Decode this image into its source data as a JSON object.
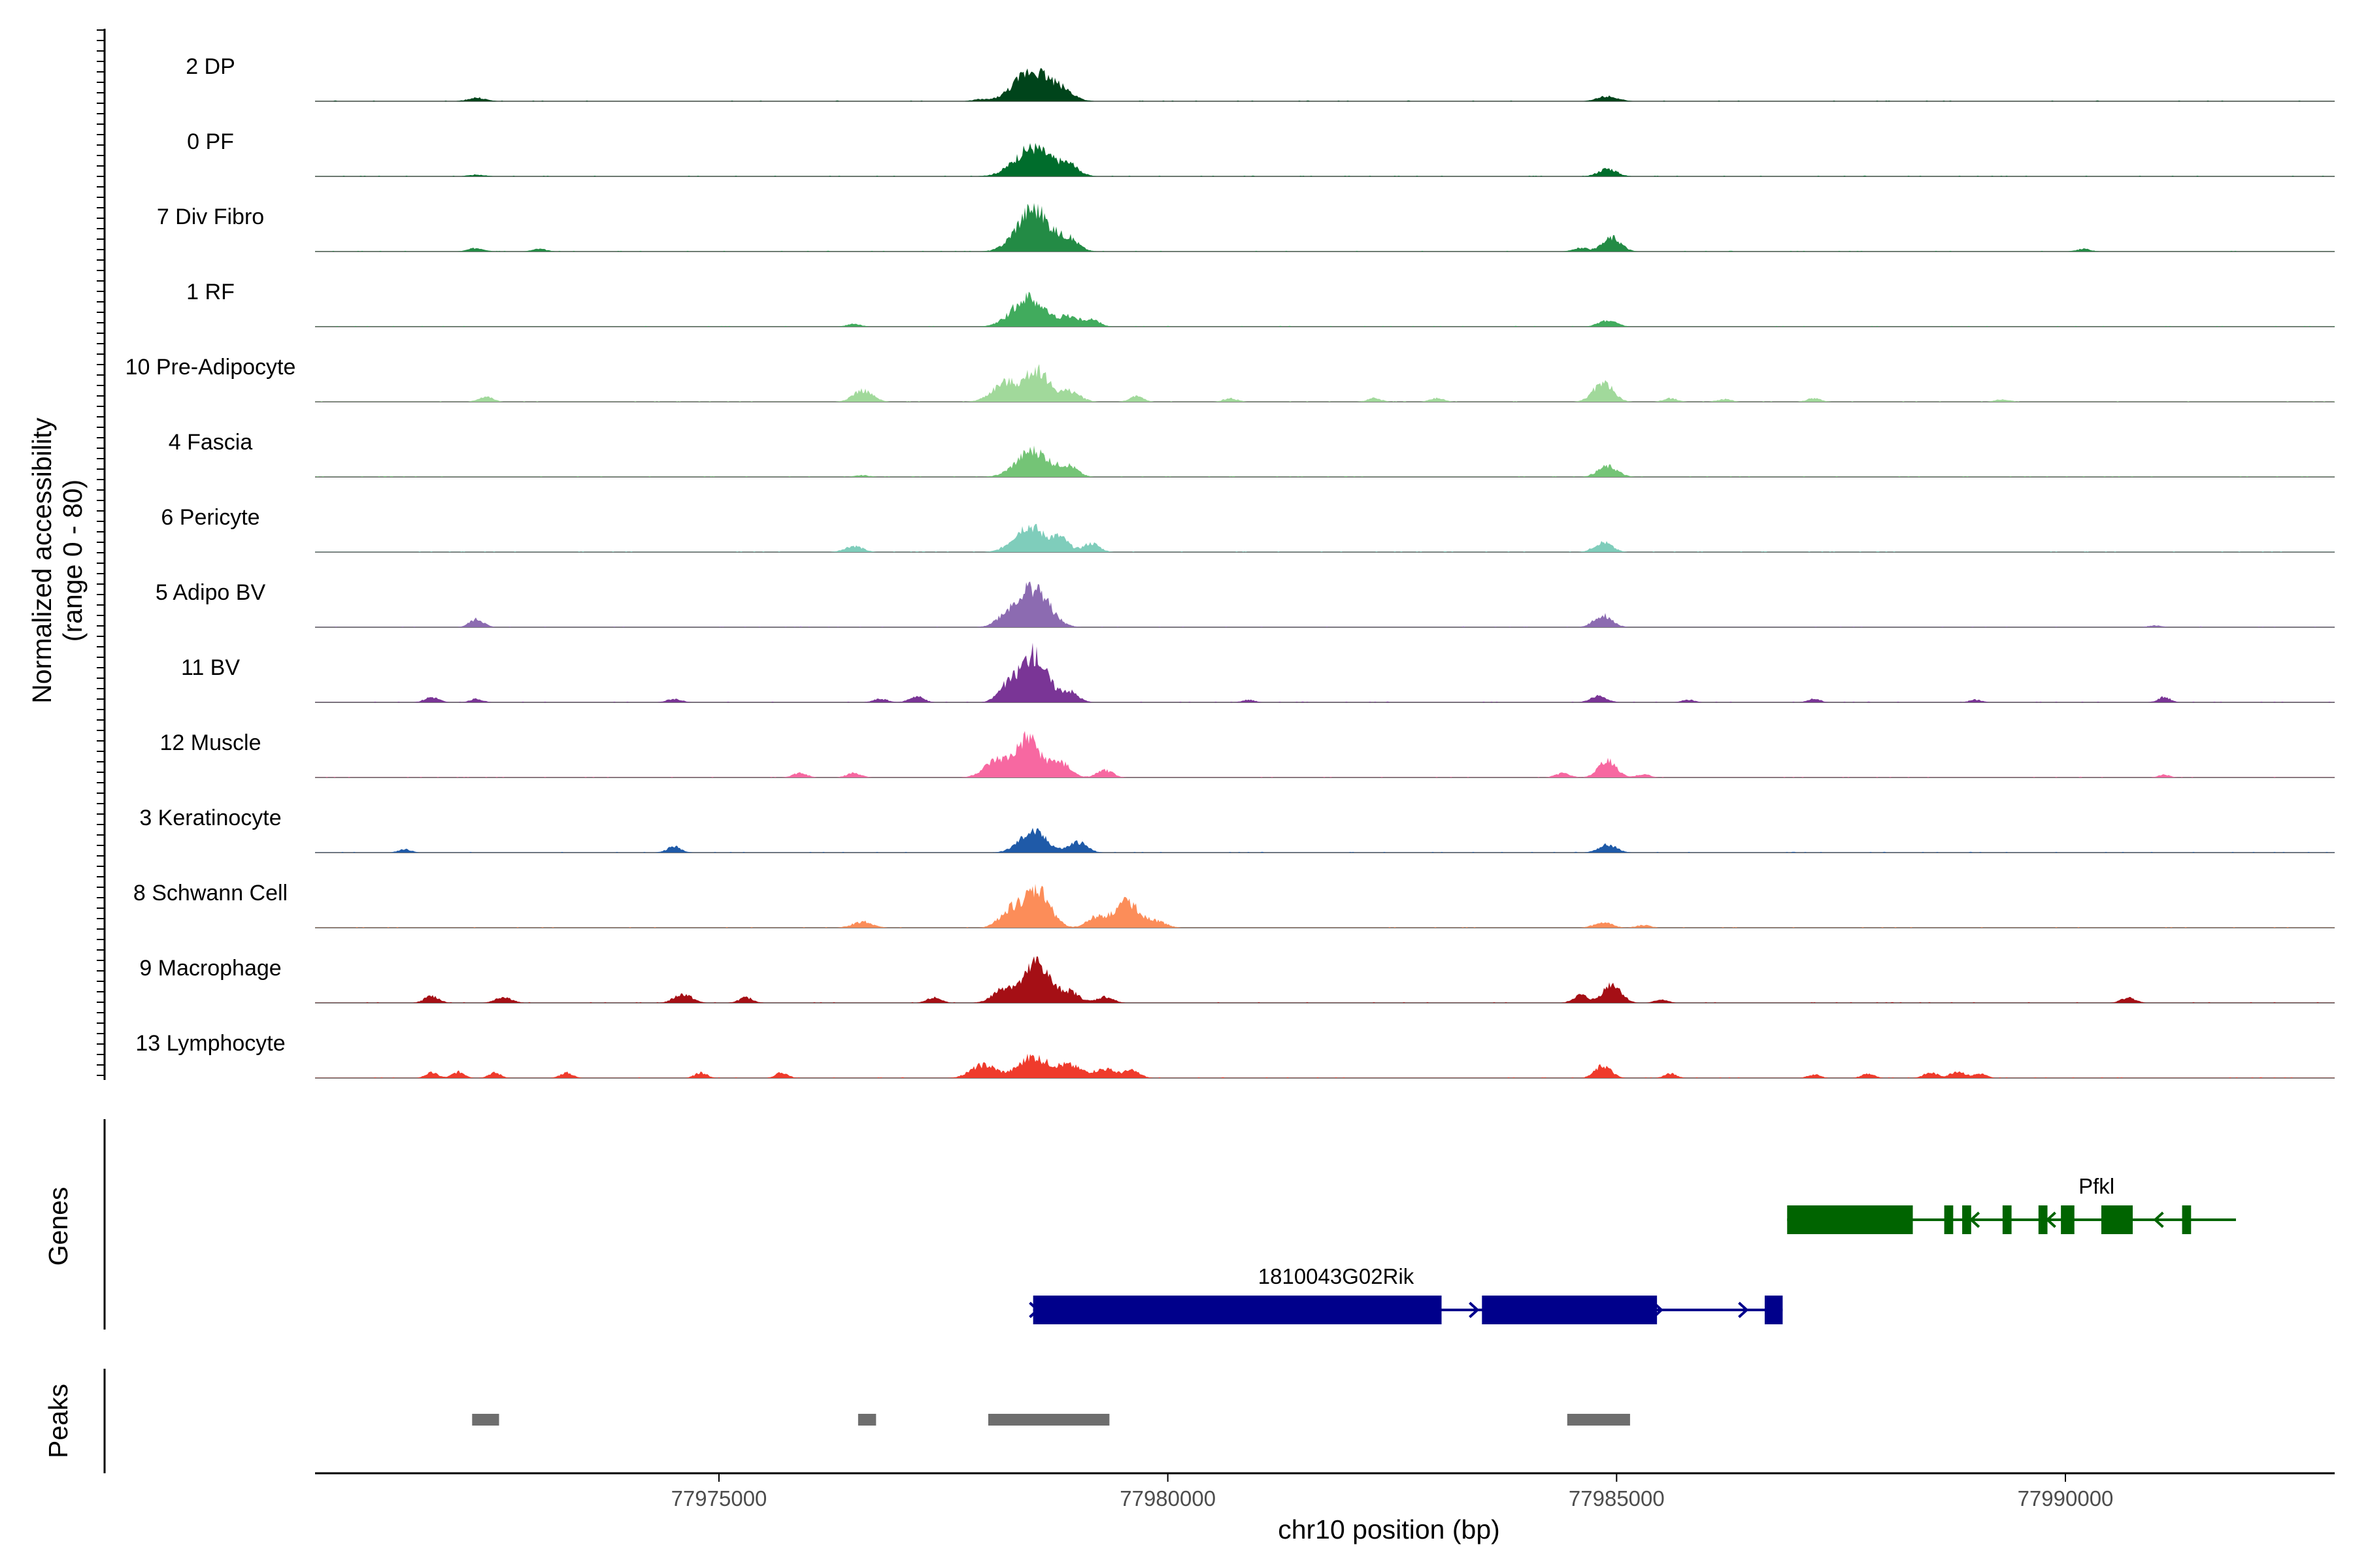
{
  "chart_data": {
    "type": "area",
    "genome_axis": {
      "label": "chr10 position (bp)",
      "range": [
        77970500,
        77993000
      ],
      "ticks": [
        77975000,
        77980000,
        77985000,
        77990000
      ],
      "tick_labels": [
        "77975000",
        "77980000",
        "77985000",
        "77990000"
      ]
    },
    "y_axis": {
      "label_line1": "Normalized accessibility",
      "label_line2": "(range 0 - 80)",
      "range": [
        0,
        80
      ]
    },
    "gridlines": false,
    "tracks": [
      {
        "name": "2 DP",
        "color": "#00441b",
        "peaks": [
          [
            77978500,
            35,
            200
          ],
          [
            77978850,
            8,
            120
          ],
          [
            77972300,
            4,
            100
          ],
          [
            77984900,
            6,
            110
          ],
          [
            77977900,
            2,
            80
          ]
        ]
      },
      {
        "name": "0 PF",
        "color": "#006d2c",
        "peaks": [
          [
            77978500,
            33,
            200
          ],
          [
            77978900,
            11,
            110
          ],
          [
            77984900,
            9,
            100
          ],
          [
            77972300,
            2,
            90
          ]
        ]
      },
      {
        "name": "7 Div Fibro",
        "color": "#238b45",
        "peaks": [
          [
            77978500,
            49,
            180
          ],
          [
            77978900,
            13,
            110
          ],
          [
            77984950,
            16,
            100
          ],
          [
            77984600,
            4,
            90
          ],
          [
            77972300,
            4,
            90
          ],
          [
            77973000,
            3,
            80
          ],
          [
            77990200,
            3,
            80
          ]
        ]
      },
      {
        "name": "1 RF",
        "color": "#41ab5d",
        "peaks": [
          [
            77978450,
            33,
            180
          ],
          [
            77978900,
            11,
            100
          ],
          [
            77979150,
            8,
            90
          ],
          [
            77984900,
            7,
            100
          ],
          [
            77976500,
            3,
            80
          ]
        ]
      },
      {
        "name": "10 Pre-Adipocyte",
        "color": "#a1d99b",
        "peaks": [
          [
            77978550,
            36,
            120
          ],
          [
            77978200,
            22,
            150
          ],
          [
            77978900,
            12,
            120
          ],
          [
            77976600,
            13,
            110
          ],
          [
            77984850,
            22,
            110
          ],
          [
            77972400,
            6,
            80
          ],
          [
            77979650,
            6,
            80
          ],
          [
            77980700,
            4,
            80
          ],
          [
            77982300,
            4,
            80
          ],
          [
            77983000,
            4,
            80
          ],
          [
            77985600,
            4,
            80
          ],
          [
            77986200,
            3,
            80
          ],
          [
            77987200,
            4,
            80
          ],
          [
            77989300,
            3,
            80
          ]
        ]
      },
      {
        "name": "4 Fascia",
        "color": "#74c476",
        "peaks": [
          [
            77978500,
            30,
            180
          ],
          [
            77978900,
            11,
            100
          ],
          [
            77984900,
            12,
            110
          ],
          [
            77976600,
            2,
            80
          ]
        ]
      },
      {
        "name": "6 Pericyte",
        "color": "#7fcdbb",
        "peaks": [
          [
            77978450,
            30,
            160
          ],
          [
            77978800,
            15,
            100
          ],
          [
            77979150,
            10,
            90
          ],
          [
            77976500,
            7,
            100
          ],
          [
            77984850,
            11,
            100
          ]
        ]
      },
      {
        "name": "5 Adipo BV",
        "color": "#8c6bb1",
        "peaks": [
          [
            77978500,
            45,
            170
          ],
          [
            77978200,
            10,
            120
          ],
          [
            77984850,
            14,
            100
          ],
          [
            77972300,
            9,
            80
          ],
          [
            77991000,
            2,
            80
          ]
        ]
      },
      {
        "name": "11 BV",
        "color": "#7a3596",
        "peaks": [
          [
            77978500,
            55,
            150
          ],
          [
            77978200,
            15,
            100
          ],
          [
            77978900,
            12,
            100
          ],
          [
            77977200,
            7,
            80
          ],
          [
            77984800,
            7,
            90
          ],
          [
            77971800,
            6,
            80
          ],
          [
            77972300,
            4,
            70
          ],
          [
            77974500,
            4,
            80
          ],
          [
            77976800,
            4,
            80
          ],
          [
            77980900,
            3,
            70
          ],
          [
            77985800,
            3,
            70
          ],
          [
            77987200,
            4,
            70
          ],
          [
            77991100,
            6,
            70
          ],
          [
            77989000,
            3,
            70
          ]
        ]
      },
      {
        "name": "12 Muscle",
        "color": "#f768a1",
        "peaks": [
          [
            77978450,
            43,
            130
          ],
          [
            77978100,
            19,
            140
          ],
          [
            77978800,
            17,
            110
          ],
          [
            77979300,
            8,
            90
          ],
          [
            77984900,
            19,
            100
          ],
          [
            77984400,
            5,
            80
          ],
          [
            77975900,
            5,
            80
          ],
          [
            77976500,
            5,
            80
          ],
          [
            77985300,
            4,
            70
          ],
          [
            77991100,
            3,
            70
          ]
        ]
      },
      {
        "name": "3 Keratinocyte",
        "color": "#1f5aa8",
        "peaks": [
          [
            77978500,
            24,
            150
          ],
          [
            77979000,
            12,
            100
          ],
          [
            77984900,
            9,
            100
          ],
          [
            77974500,
            7,
            80
          ],
          [
            77971500,
            4,
            70
          ]
        ]
      },
      {
        "name": "8 Schwann Cell",
        "color": "#fc8d59",
        "peaks": [
          [
            77978550,
            42,
            140
          ],
          [
            77978250,
            20,
            120
          ],
          [
            77979550,
            30,
            140
          ],
          [
            77979200,
            12,
            100
          ],
          [
            77979900,
            6,
            100
          ],
          [
            77976600,
            7,
            110
          ],
          [
            77984850,
            6,
            100
          ],
          [
            77985300,
            3,
            80
          ]
        ]
      },
      {
        "name": "9 Macrophage",
        "color": "#a50f15",
        "peaks": [
          [
            77978550,
            46,
            130
          ],
          [
            77978200,
            18,
            130
          ],
          [
            77978900,
            13,
            110
          ],
          [
            77979300,
            7,
            90
          ],
          [
            77984950,
            22,
            100
          ],
          [
            77984600,
            9,
            80
          ],
          [
            77971800,
            8,
            80
          ],
          [
            77972600,
            7,
            90
          ],
          [
            77974600,
            10,
            100
          ],
          [
            77975300,
            6,
            80
          ],
          [
            77977400,
            6,
            80
          ],
          [
            77985500,
            4,
            70
          ],
          [
            77990700,
            6,
            80
          ]
        ]
      },
      {
        "name": "13 Lymphocyte",
        "color": "#ef3b2c",
        "peaks": [
          [
            77978500,
            24,
            160
          ],
          [
            77977950,
            15,
            140
          ],
          [
            77978900,
            14,
            140
          ],
          [
            77979300,
            10,
            120
          ],
          [
            77979600,
            8,
            90
          ],
          [
            77971800,
            6,
            70
          ],
          [
            77972100,
            7,
            70
          ],
          [
            77972500,
            6,
            70
          ],
          [
            77973300,
            6,
            70
          ],
          [
            77974800,
            6,
            70
          ],
          [
            77975700,
            6,
            70
          ],
          [
            77984850,
            14,
            90
          ],
          [
            77985600,
            5,
            70
          ],
          [
            77987200,
            4,
            70
          ],
          [
            77987800,
            5,
            70
          ],
          [
            77988500,
            6,
            80
          ],
          [
            77988800,
            8,
            80
          ],
          [
            77989050,
            5,
            70
          ]
        ]
      }
    ],
    "genes": [
      {
        "name": "Pfkl",
        "color": "#006400",
        "strand": "-",
        "row": 0,
        "span": [
          77986900,
          77991900
        ],
        "exons": [
          [
            77986900,
            77988300
          ],
          [
            77988650,
            77988750
          ],
          [
            77988850,
            77988950
          ],
          [
            77989300,
            77989400
          ],
          [
            77989700,
            77989800
          ],
          [
            77989950,
            77990100
          ],
          [
            77990400,
            77990750
          ],
          [
            77991300,
            77991400
          ]
        ],
        "arrows": [
          77988950,
          77989800,
          77991000
        ]
      },
      {
        "name": "1810043G02Rik",
        "color": "#00008b",
        "strand": "+",
        "row": 1,
        "span": [
          77978500,
          77986850
        ],
        "exons": [
          [
            77978500,
            77983050
          ],
          [
            77983500,
            77985450
          ],
          [
            77986650,
            77986850
          ]
        ],
        "arrows": [
          77978550,
          77983450,
          77985500,
          77986450
        ]
      }
    ],
    "peaks_track": {
      "label": "Peaks",
      "color": "#6e6e6e",
      "regions": [
        [
          77972250,
          77972550
        ],
        [
          77976550,
          77976750
        ],
        [
          77978000,
          77979350
        ],
        [
          77984450,
          77985150
        ]
      ]
    },
    "panel_labels": {
      "genes": "Genes",
      "peaks": "Peaks"
    }
  }
}
